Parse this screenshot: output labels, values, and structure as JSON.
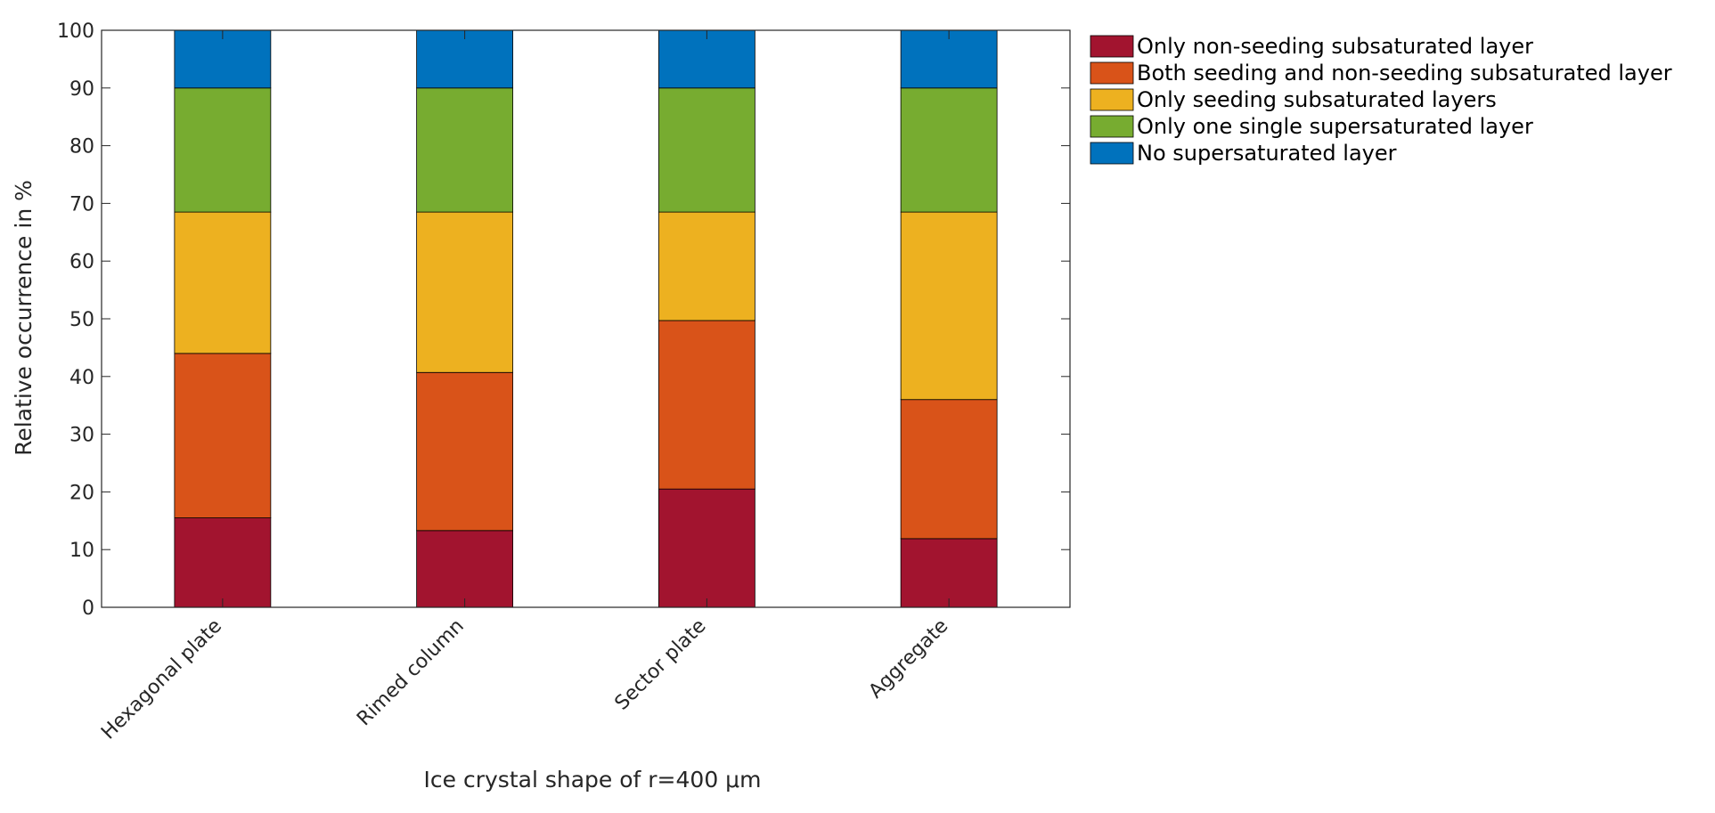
{
  "chart_data": {
    "type": "bar",
    "stacked": true,
    "categories": [
      "Hexagonal plate",
      "Rimed column",
      "Sector plate",
      "Aggregate"
    ],
    "series": [
      {
        "name": "Only non-seeding subsaturated layer",
        "color": "#A2142F",
        "values": [
          15.5,
          13.3,
          20.5,
          11.9
        ]
      },
      {
        "name": "Both seeding and non-seeding subsaturated layer",
        "color": "#D95319",
        "values": [
          28.5,
          27.4,
          29.2,
          24.1
        ]
      },
      {
        "name": "Only seeding subsaturated layers",
        "color": "#EDB120",
        "values": [
          24.5,
          27.8,
          18.8,
          32.5
        ]
      },
      {
        "name": "Only one single supersaturated layer",
        "color": "#77AC30",
        "values": [
          21.5,
          21.5,
          21.5,
          21.5
        ]
      },
      {
        "name": "No supersaturated layer",
        "color": "#0072BD",
        "values": [
          10,
          10,
          10,
          10
        ]
      }
    ],
    "xlabel": "Ice crystal shape of r=400 μm",
    "ylabel": "Relative occurrence in %",
    "ylim": [
      0,
      100
    ],
    "yticks": [
      "0",
      "10",
      "20",
      "30",
      "40",
      "50",
      "60",
      "70",
      "80",
      "90",
      "100"
    ],
    "grid": false,
    "legend_position": "outside-top-right"
  }
}
